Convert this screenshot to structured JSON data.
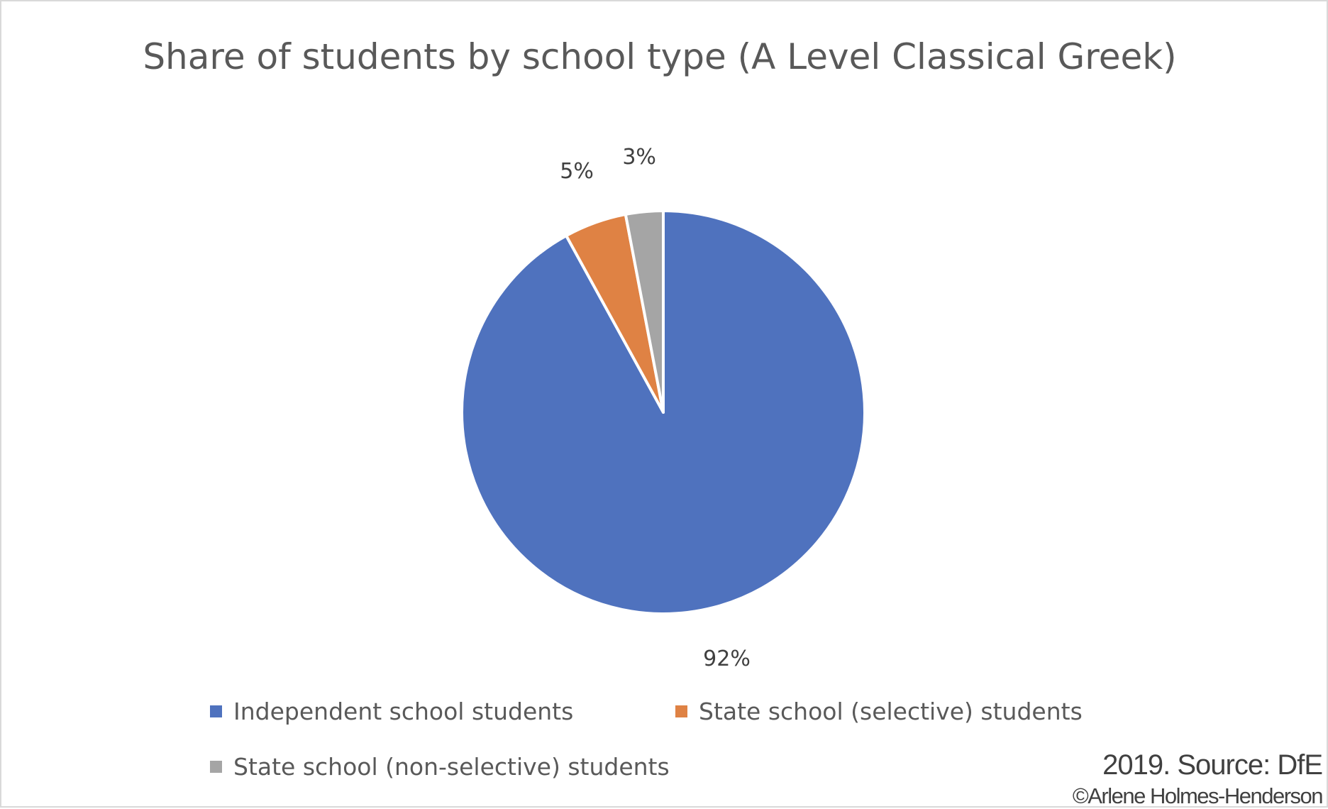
{
  "chart_data": {
    "type": "pie",
    "title": "Share of students by school type (A Level Classical Greek)",
    "categories": [
      "Independent school students",
      "State school (selective) students",
      "State school (non-selective) students"
    ],
    "values": [
      92,
      5,
      3
    ],
    "data_labels": [
      "92%",
      "5%",
      "3%"
    ],
    "colors": [
      "#4f72be",
      "#df8244",
      "#a5a5a5"
    ],
    "legend_position": "bottom"
  },
  "footer": {
    "source": "2019. Source: DfE",
    "credit": "©Arlene Holmes-Henderson"
  }
}
